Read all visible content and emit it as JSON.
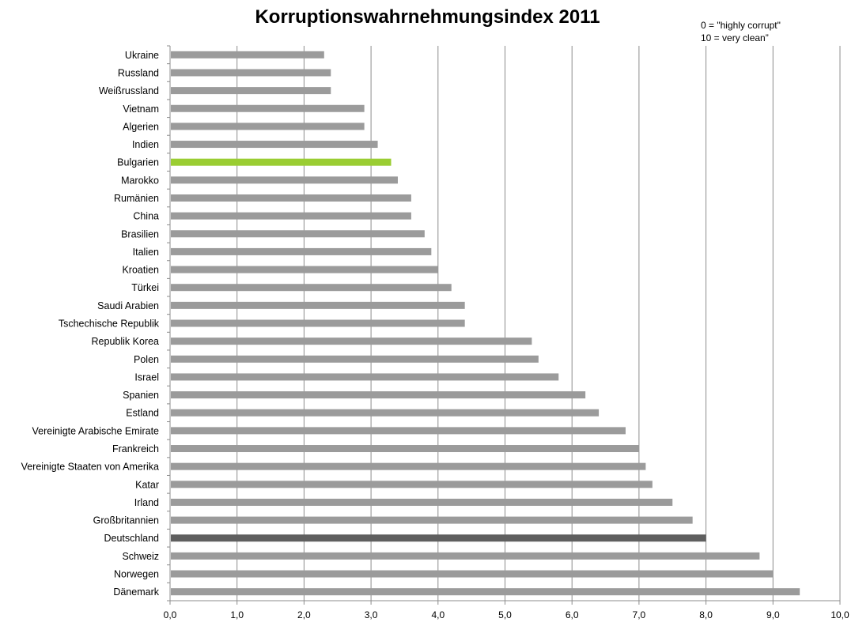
{
  "title": "Korruptionswahrnehmungsindex 2011",
  "legend_note": [
    "0 = \"highly corrupt\"",
    "10 = very clean”"
  ],
  "colors": {
    "default": "#9b9b9b",
    "Bulgarien": "#9acd32",
    "Deutschland": "#5f5f5f",
    "grid": "#8c8c8c"
  },
  "chart_data": {
    "type": "bar",
    "orientation": "horizontal",
    "title": "Korruptionswahrnehmungsindex 2011",
    "xlabel": "",
    "ylabel": "",
    "xlim": [
      0,
      10
    ],
    "grid": true,
    "x_ticks": [
      "0,0",
      "1,0",
      "2,0",
      "3,0",
      "4,0",
      "5,0",
      "6,0",
      "7,0",
      "8,0",
      "9,0",
      "10,0"
    ],
    "categories": [
      "Ukraine",
      "Russland",
      "Weißrussland",
      "Vietnam",
      "Algerien",
      "Indien",
      "Bulgarien",
      "Marokko",
      "Rumänien",
      "China",
      "Brasilien",
      "Italien",
      "Kroatien",
      "Türkei",
      "Saudi Arabien",
      "Tschechische Republik",
      "Republik Korea",
      "Polen",
      "Israel",
      "Spanien",
      "Estland",
      "Vereinigte Arabische Emirate",
      "Frankreich",
      "Vereinigte Staaten von Amerika",
      "Katar",
      "Irland",
      "Großbritannien",
      "Deutschland",
      "Schweiz",
      "Norwegen",
      "Dänemark"
    ],
    "values": [
      2.3,
      2.4,
      2.4,
      2.9,
      2.9,
      3.1,
      3.3,
      3.4,
      3.6,
      3.6,
      3.8,
      3.9,
      4.0,
      4.2,
      4.4,
      4.4,
      5.4,
      5.5,
      5.8,
      6.2,
      6.4,
      6.8,
      7.0,
      7.1,
      7.2,
      7.5,
      7.8,
      8.0,
      8.8,
      9.0,
      9.4
    ]
  }
}
